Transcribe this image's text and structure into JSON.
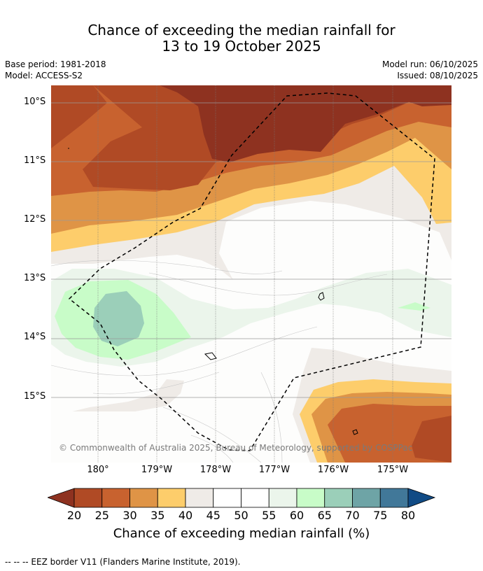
{
  "title": {
    "line1": "Chance of exceeding the median rainfall for",
    "line2": "13 to 19 October 2025"
  },
  "meta": {
    "base_period": "Base period: 1981-2018",
    "model": "Model: ACCESS-S2",
    "model_run": "Model run: 06/10/2025",
    "issued": "Issued: 08/10/2025"
  },
  "axes": {
    "lat_labels": [
      "10°S",
      "11°S",
      "12°S",
      "13°S",
      "14°S",
      "15°S"
    ],
    "lon_labels": [
      "180°",
      "179°W",
      "178°W",
      "177°W",
      "176°W",
      "175°W"
    ]
  },
  "copyright": "© Commonwealth of Australia 2025, Bureau of Meteorology, supported by COSPPac",
  "colorbar": {
    "ticks": [
      "20",
      "25",
      "30",
      "35",
      "40",
      "45",
      "50",
      "55",
      "60",
      "65",
      "70",
      "75",
      "80"
    ],
    "colors": [
      "#8e3220",
      "#b04a25",
      "#c8622f",
      "#df9446",
      "#fdcd6b",
      "#efebe7",
      "#ffffff",
      "#ffffff",
      "#ebf5eb",
      "#c8fcc8",
      "#9bcfb9",
      "#6ea4a6",
      "#417899",
      "#114b85"
    ],
    "label": "Chance of exceeding median rainfall (%)"
  },
  "footer": "--  --  -- EEZ border V11 (Flanders Marine Institute, 2019)."
}
